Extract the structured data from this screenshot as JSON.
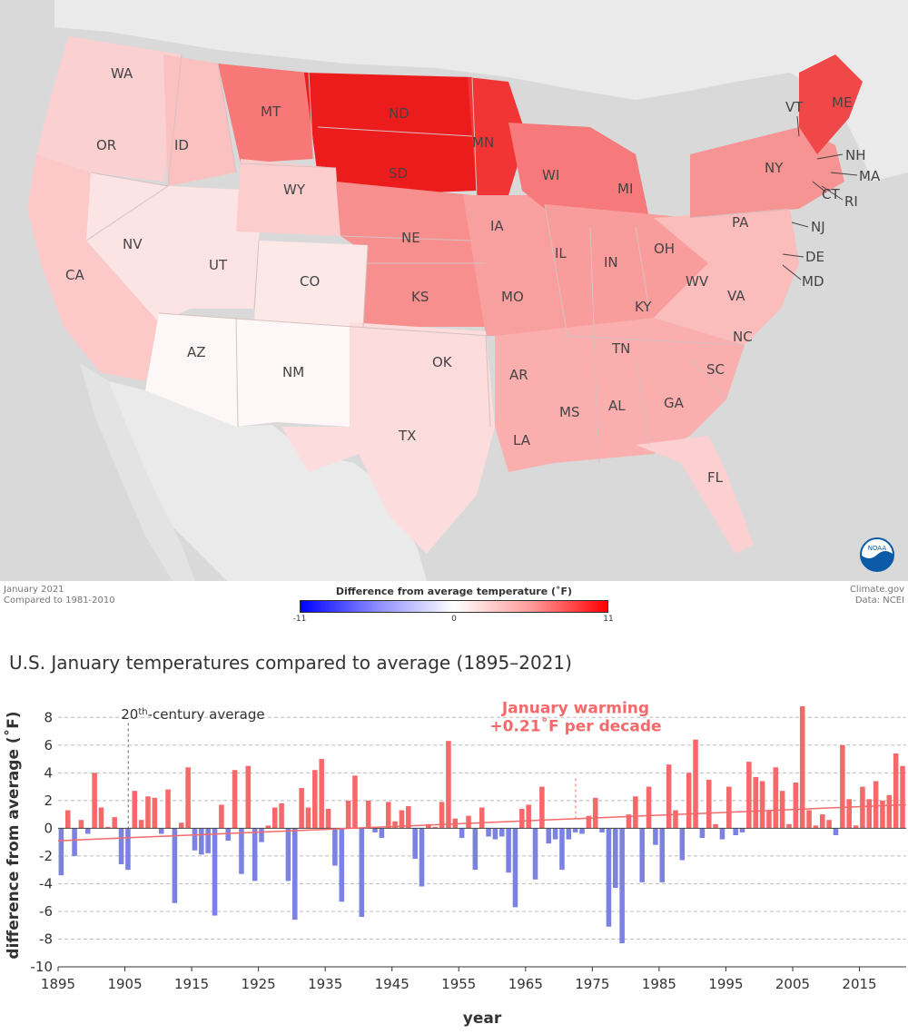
{
  "map": {
    "caption_left_1": "January 2021",
    "caption_left_2": "Compared to 1981-2010",
    "legend_title": "Difference from average temperature (˚F)",
    "legend_min": "-11",
    "legend_mid": "0",
    "legend_max": "11",
    "caption_right_1": "Climate.gov",
    "caption_right_2": "Data: NCEI",
    "logo_text": "NOAA",
    "colors": {
      "background": "#d9d9d9",
      "cold": "#0000ff",
      "warm": "#ff0000"
    },
    "state_labels": [
      "WA",
      "OR",
      "ID",
      "MT",
      "ND",
      "SD",
      "MN",
      "WY",
      "NE",
      "IA",
      "WI",
      "MI",
      "CA",
      "NV",
      "UT",
      "CO",
      "KS",
      "MO",
      "IL",
      "IN",
      "OH",
      "AZ",
      "NM",
      "OK",
      "AR",
      "TN",
      "KY",
      "WV",
      "VA",
      "NC",
      "SC",
      "GA",
      "AL",
      "MS",
      "LA",
      "TX",
      "FL",
      "PA",
      "NY",
      "ME",
      "VT",
      "NH",
      "MA",
      "CT",
      "RI",
      "NJ",
      "DE",
      "MD"
    ],
    "state_anomalies_f": {
      "WA": 3,
      "OR": 1.5,
      "ID": 2.5,
      "MT": 6,
      "ND": 10.5,
      "SD": 9.5,
      "MN": 9,
      "WY": 2.5,
      "NE": 6,
      "IA": 5,
      "WI": 5.5,
      "MI": 5.5,
      "CA": 2.5,
      "NV": 1.5,
      "UT": 0.5,
      "CO": 1,
      "KS": 5,
      "MO": 4,
      "IL": 4,
      "IN": 4,
      "OH": 4,
      "AZ": 0.3,
      "NM": -0.3,
      "OK": 3,
      "AR": 3,
      "TN": 3.5,
      "KY": 2.5,
      "WV": 2.5,
      "VA": 2,
      "NC": 1.5,
      "SC": 3,
      "GA": 3.5,
      "AL": 3.5,
      "MS": 3,
      "LA": 1.5,
      "TX": 1,
      "FL": 1.5,
      "PA": 4,
      "NY": 4,
      "ME": 7.5,
      "VT": 5.5,
      "NH": 5,
      "MA": 5,
      "CT": 4.5,
      "RI": 4.5,
      "NJ": 3.5,
      "DE": 3,
      "MD": 3
    }
  },
  "chart_data": {
    "type": "bar",
    "title": "U.S. January temperatures compared to average (1895–2021)",
    "xlabel": "year",
    "ylabel": "difference from average (˚F)",
    "ylim": [
      -10,
      9
    ],
    "yticks": [
      "8",
      "6",
      "4",
      "2",
      "0",
      "-2",
      "-4",
      "-6",
      "-8",
      "-10"
    ],
    "xticks": [
      "1895",
      "1905",
      "1915",
      "1925",
      "1935",
      "1945",
      "1955",
      "1965",
      "1975",
      "1985",
      "1995",
      "2005",
      "2015"
    ],
    "start_year": 1895,
    "values": [
      -3.4,
      1.3,
      -2.0,
      0.6,
      -0.4,
      4.0,
      1.5,
      0.1,
      0.8,
      -2.6,
      -3.0,
      2.7,
      0.6,
      2.3,
      2.2,
      -0.4,
      2.8,
      -5.4,
      0.4,
      4.4,
      -1.6,
      -1.9,
      -1.8,
      -6.3,
      1.7,
      -0.9,
      4.2,
      -3.3,
      4.5,
      -3.8,
      -1.0,
      0.2,
      1.5,
      1.8,
      -3.8,
      -6.6,
      2.9,
      1.5,
      4.2,
      5.0,
      1.4,
      -2.7,
      -5.3,
      2.0,
      3.8,
      -6.4,
      2.0,
      -0.3,
      -0.7,
      1.9,
      0.5,
      1.3,
      1.6,
      -2.2,
      -4.2,
      0.3,
      0.1,
      1.9,
      6.3,
      0.7,
      -0.7,
      0.9,
      -3.0,
      1.5,
      -0.6,
      -0.8,
      -0.6,
      -3.2,
      -5.7,
      1.4,
      1.7,
      -3.7,
      3.0,
      -1.1,
      -0.8,
      -3.0,
      -0.8,
      -0.3,
      -0.4,
      0.9,
      2.2,
      -0.3,
      -7.1,
      -4.3,
      -8.3,
      1.0,
      2.3,
      -3.9,
      3.0,
      -1.2,
      -3.9,
      4.6,
      1.3,
      -2.3,
      4.0,
      6.4,
      -0.7,
      3.5,
      0.3,
      -0.8,
      3.0,
      -0.5,
      -0.3,
      4.8,
      3.7,
      3.4,
      1.3,
      4.4,
      2.7,
      0.3,
      3.3,
      8.8,
      1.3,
      0.2,
      1.0,
      0.6,
      -0.5,
      6.0,
      2.1,
      0.2,
      3.0,
      2.1,
      3.4,
      2.0,
      2.4,
      5.4,
      4.5
    ],
    "reference_line_label": "20th-century average",
    "reference_line_label_base": "20",
    "reference_line_label_sup": "th",
    "reference_line_label_rest": "-century average",
    "reference_line_year": 1905,
    "trend": {
      "label_line1": "January warming",
      "label_line2": "+0.21˚F per decade",
      "rate_per_decade": 0.21,
      "start_value": -0.9,
      "end_value": 1.7,
      "marker_year": 1972
    },
    "colors": {
      "positive": "#f5696b",
      "negative": "#7b82e2",
      "trend": "#f5696b",
      "grid": "#bbbbbb"
    }
  }
}
